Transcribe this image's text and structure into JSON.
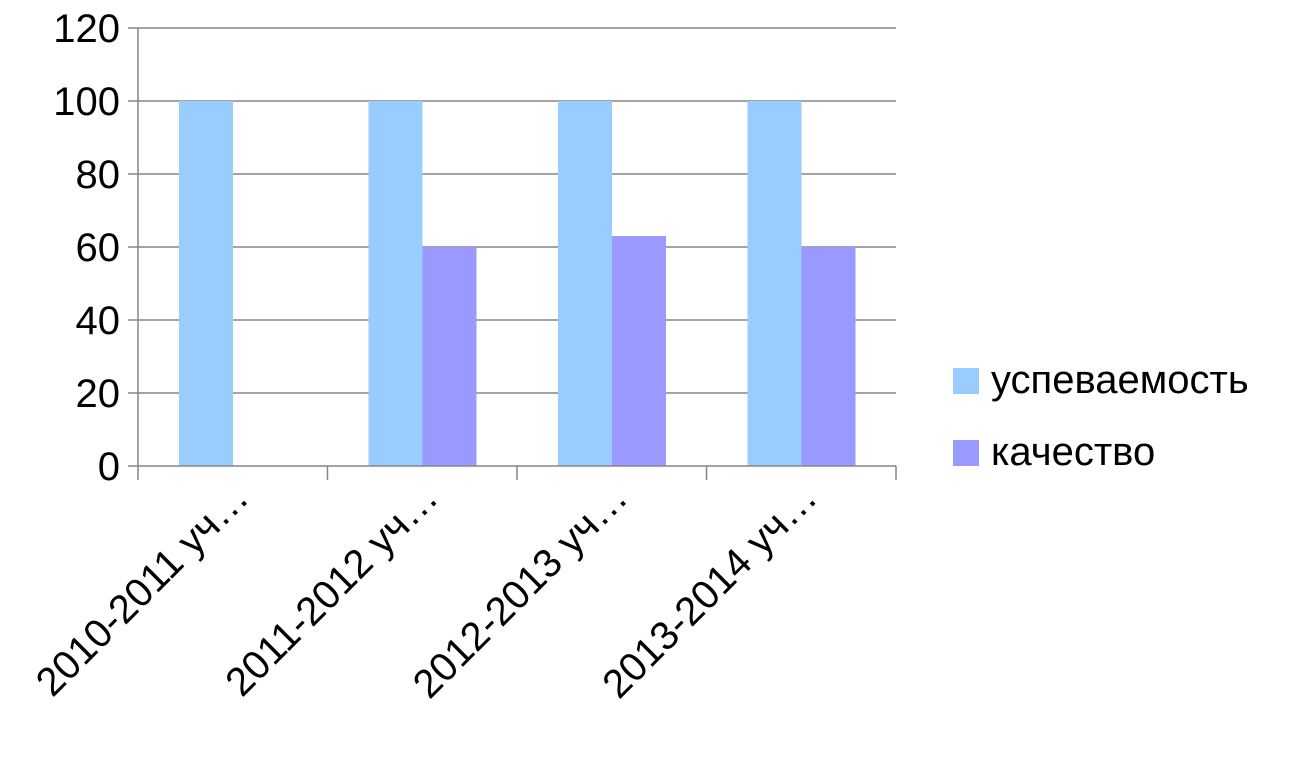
{
  "chart_data": {
    "type": "bar",
    "categories": [
      "2010-2011 уч…",
      "2011-2012 уч…",
      "2012-2013 уч…",
      "2013-2014 уч…"
    ],
    "series": [
      {
        "name": "успеваемость",
        "values": [
          100,
          100,
          100,
          100
        ],
        "color": "#99CCFF"
      },
      {
        "name": "качество",
        "values": [
          0,
          60,
          63,
          60
        ],
        "color": "#9999FF"
      }
    ],
    "ylim": [
      0,
      120
    ],
    "yticks": [
      0,
      20,
      40,
      60,
      80,
      100,
      120
    ],
    "grid": true,
    "legend_position": "right",
    "colors": {
      "grid": "#868686",
      "axis": "#868686",
      "text": "#000000"
    }
  }
}
